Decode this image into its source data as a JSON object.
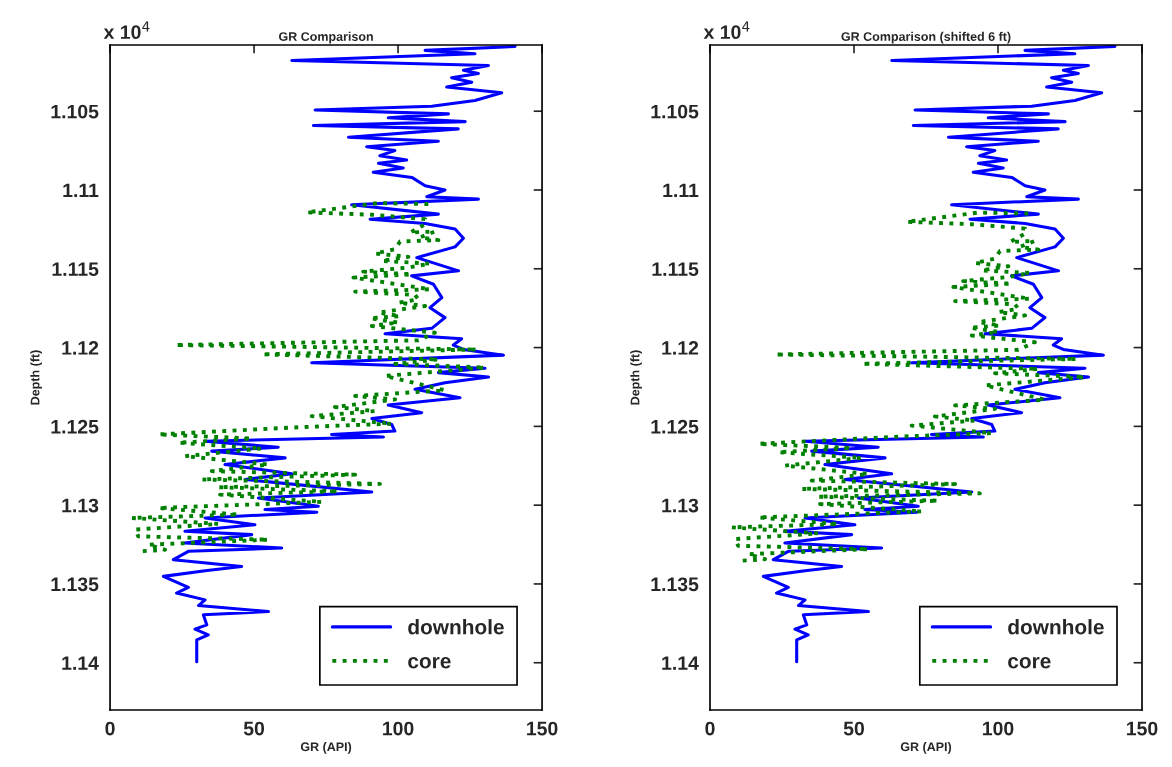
{
  "chart_data": [
    {
      "type": "line",
      "title": "GR Comparison",
      "xlabel": "GR (API)",
      "ylabel": "Depth (ft)",
      "annotations": [
        "x 10$^{4}$"
      ],
      "xlim": [
        0,
        150
      ],
      "xticks": [
        0,
        50,
        100,
        150
      ],
      "ylim": [
        1.143,
        1.1008
      ],
      "yticks": [
        1.105,
        1.11,
        1.115,
        1.12,
        1.125,
        1.13,
        1.135,
        1.14
      ],
      "legend": "bottom right",
      "series": [
        {
          "name": "downhole",
          "color": "#0000ff",
          "line_style": "solid",
          "x": [
            140.6,
            109.4,
            126.7,
            63.1,
            131.4,
            122.7,
            127.9,
            118.6,
            125.6,
            116.9,
            136,
            126.7,
            111.7,
            71.2,
            117.5,
            96.6,
            123.3,
            70.6,
            120.9,
            82.8,
            114,
            89.1,
            98.9,
            93.7,
            103,
            93.2,
            101.8,
            91.4,
            104.8,
            109.4,
            116.3,
            110,
            127.9,
            83.9,
            114,
            90.3,
            109.4,
            119.8,
            122.7,
            119.8,
            106.5,
            121,
            104.7,
            112.3,
            115.2,
            111.1,
            116.3,
            111.7,
            95.5,
            122.1,
            119.2,
            122.7,
            136.6,
            70,
            130.2,
            114,
            131.4,
            116.3,
            105.9,
            121.5,
            96.6,
            108.2,
            90.9,
            97.8,
            98.9,
            76.9,
            94.9,
            33,
            58.4,
            35.3,
            60.8,
            39.9,
            63.1,
            46.9,
            90.9,
            51.5,
            72.3,
            53.8,
            71.8,
            33,
            50.3,
            26,
            49.2,
            26,
            59.6,
            27.2,
            22,
            45.7,
            33,
            18.5,
            27.2,
            23.1,
            33,
            30.7,
            55,
            32.4,
            33.6,
            29.5,
            34.1,
            30.1,
            30.1
          ],
          "values": [
            1.10089,
            1.10114,
            1.10135,
            1.10178,
            1.1021,
            1.1024,
            1.1026,
            1.10288,
            1.10316,
            1.10347,
            1.10383,
            1.10432,
            1.10468,
            1.10492,
            1.10517,
            1.10542,
            1.10566,
            1.10591,
            1.10612,
            1.10665,
            1.10691,
            1.10725,
            1.1075,
            1.10782,
            1.1081,
            1.10831,
            1.1086,
            1.10888,
            1.1092,
            1.10973,
            1.11,
            1.11043,
            1.11058,
            1.11094,
            1.11153,
            1.11185,
            1.11212,
            1.11248,
            1.11306,
            1.11361,
            1.11429,
            1.11513,
            1.11545,
            1.11598,
            1.11683,
            1.11747,
            1.1181,
            1.11878,
            1.11912,
            1.11944,
            1.11984,
            1.12012,
            1.12048,
            1.12096,
            1.12131,
            1.12159,
            1.12187,
            1.12223,
            1.12265,
            1.12318,
            1.12365,
            1.12413,
            1.1245,
            1.12488,
            1.1253,
            1.12551,
            1.12568,
            1.12594,
            1.12632,
            1.12657,
            1.127,
            1.12742,
            1.12801,
            1.12837,
            1.12916,
            1.12954,
            1.13007,
            1.13028,
            1.13045,
            1.13081,
            1.13124,
            1.13166,
            1.13187,
            1.1324,
            1.13272,
            1.13293,
            1.13346,
            1.13389,
            1.13416,
            1.13452,
            1.13522,
            1.13558,
            1.13601,
            1.13637,
            1.13675,
            1.13696,
            1.1376,
            1.13787,
            1.13823,
            1.13855,
            1.13993
          ]
        },
        {
          "name": "core",
          "color": "#008000",
          "line_style": "dotted",
          "x": [
            110.5,
            93.2,
            68.3,
            90.9,
            109.4,
            109.4,
            104.2,
            112.8,
            107.6,
            114,
            100.7,
            98.9,
            92,
            103.6,
            94.3,
            111.1,
            103.6,
            87.9,
            104.7,
            84.5,
            111.1,
            85.1,
            105.9,
            107.1,
            100.1,
            109.4,
            93.2,
            100.7,
            90.3,
            100.1,
            90.9,
            112.8,
            107.1,
            22.6,
            127.3,
            52.7,
            114,
            99,
            130.2,
            95.5,
            116.3,
            85.1,
            99,
            78.1,
            92,
            70,
            97.8,
            66,
            16.8,
            49.2,
            23.7,
            52.7,
            26,
            55,
            35.3,
            85.1,
            31.8,
            93.7,
            37.6,
            79.3,
            38.2,
            73.5,
            16.8,
            44.6,
            7.5,
            37.6,
            8.7,
            9.8,
            55,
            13.3,
            19.1,
            10.4
          ],
          "values": [
            1.11089,
            1.11083,
            1.11142,
            1.11157,
            1.11185,
            1.11217,
            1.1127,
            1.11263,
            1.11301,
            1.11318,
            1.11327,
            1.11376,
            1.11403,
            1.11424,
            1.1145,
            1.11467,
            1.11492,
            1.11518,
            1.11535,
            1.11556,
            1.1163,
            1.11645,
            1.11666,
            1.11694,
            1.11715,
            1.11736,
            1.11778,
            1.118,
            1.11814,
            1.11841,
            1.11863,
            1.11906,
            1.11954,
            1.11984,
            1.12012,
            1.12043,
            1.12075,
            1.12103,
            1.12127,
            1.1218,
            1.12271,
            1.12307,
            1.12329,
            1.12377,
            1.12403,
            1.12435,
            1.12483,
            1.12505,
            1.12551,
            1.12577,
            1.12604,
            1.1264,
            1.12689,
            1.12742,
            1.12784,
            1.12806,
            1.12837,
            1.12865,
            1.12886,
            1.12912,
            1.12933,
            1.12979,
            1.13018,
            1.1306,
            1.13081,
            1.13119,
            1.13155,
            1.13198,
            1.13219,
            1.13251,
            1.13283,
            1.13293
          ]
        }
      ]
    },
    {
      "type": "line",
      "title": "GR Comparison (shifted 6 ft)",
      "xlabel": "GR (API)",
      "ylabel": "Depth (ft)",
      "annotations": [
        "x 10$^{4}$"
      ],
      "xlim": [
        0,
        150
      ],
      "xticks": [
        0,
        50,
        100,
        150
      ],
      "ylim": [
        1.143,
        1.1008
      ],
      "yticks": [
        1.105,
        1.11,
        1.115,
        1.12,
        1.125,
        1.13,
        1.135,
        1.14
      ],
      "legend": "bottom right",
      "series": [
        {
          "name": "downhole",
          "color": "#0000ff",
          "line_style": "solid",
          "x": [
            140.6,
            109.4,
            126.7,
            63.1,
            131.4,
            122.7,
            127.9,
            118.6,
            125.6,
            116.9,
            136,
            126.7,
            111.7,
            71.2,
            117.5,
            96.6,
            123.3,
            70.6,
            120.9,
            82.8,
            114,
            89.1,
            98.9,
            93.7,
            103,
            93.2,
            101.8,
            91.4,
            104.8,
            109.4,
            116.3,
            110,
            127.9,
            83.9,
            114,
            90.3,
            109.4,
            119.8,
            122.7,
            119.8,
            106.5,
            121,
            104.7,
            112.3,
            115.2,
            111.1,
            116.3,
            111.7,
            95.5,
            122.1,
            119.2,
            122.7,
            136.6,
            70,
            130.2,
            114,
            131.4,
            116.3,
            105.9,
            121.5,
            96.6,
            108.2,
            90.9,
            97.8,
            98.9,
            76.9,
            94.9,
            33,
            58.4,
            35.3,
            60.8,
            39.9,
            63.1,
            46.9,
            90.9,
            51.5,
            72.3,
            53.8,
            71.8,
            33,
            50.3,
            26,
            49.2,
            26,
            59.6,
            27.2,
            22,
            45.7,
            33,
            18.5,
            27.2,
            23.1,
            33,
            30.7,
            55,
            32.4,
            33.6,
            29.5,
            34.1,
            30.1,
            30.1
          ],
          "values": [
            1.10089,
            1.10114,
            1.10135,
            1.10178,
            1.1021,
            1.1024,
            1.1026,
            1.10288,
            1.10316,
            1.10347,
            1.10383,
            1.10432,
            1.10468,
            1.10492,
            1.10517,
            1.10542,
            1.10566,
            1.10591,
            1.10612,
            1.10665,
            1.10691,
            1.10725,
            1.1075,
            1.10782,
            1.1081,
            1.10831,
            1.1086,
            1.10888,
            1.1092,
            1.10973,
            1.11,
            1.11043,
            1.11058,
            1.11094,
            1.11153,
            1.11185,
            1.11212,
            1.11248,
            1.11306,
            1.11361,
            1.11429,
            1.11513,
            1.11545,
            1.11598,
            1.11683,
            1.11747,
            1.1181,
            1.11878,
            1.11912,
            1.11944,
            1.11984,
            1.12012,
            1.12048,
            1.12096,
            1.12131,
            1.12159,
            1.12187,
            1.12223,
            1.12265,
            1.12318,
            1.12365,
            1.12413,
            1.1245,
            1.12488,
            1.1253,
            1.12551,
            1.12568,
            1.12594,
            1.12632,
            1.12657,
            1.127,
            1.12742,
            1.12801,
            1.12837,
            1.12916,
            1.12954,
            1.13007,
            1.13028,
            1.13045,
            1.13081,
            1.13124,
            1.13166,
            1.13187,
            1.1324,
            1.13272,
            1.13293,
            1.13346,
            1.13389,
            1.13416,
            1.13452,
            1.13522,
            1.13558,
            1.13601,
            1.13637,
            1.13675,
            1.13696,
            1.1376,
            1.13787,
            1.13823,
            1.13855,
            1.13993
          ]
        },
        {
          "name": "core",
          "color": "#008000",
          "line_style": "dotted",
          "x": [
            110.5,
            93.2,
            68.3,
            90.9,
            109.4,
            109.4,
            104.2,
            112.8,
            107.6,
            114,
            100.7,
            98.9,
            92,
            103.6,
            94.3,
            111.1,
            103.6,
            87.9,
            104.7,
            84.5,
            111.1,
            85.1,
            105.9,
            107.1,
            100.1,
            109.4,
            93.2,
            100.7,
            90.3,
            100.1,
            90.9,
            112.8,
            107.1,
            22.6,
            127.3,
            52.7,
            114,
            99,
            130.2,
            95.5,
            116.3,
            85.1,
            99,
            78.1,
            92,
            70,
            97.8,
            66,
            16.8,
            49.2,
            23.7,
            52.7,
            26,
            55,
            35.3,
            85.1,
            31.8,
            93.7,
            37.6,
            79.3,
            38.2,
            73.5,
            16.8,
            44.6,
            7.5,
            37.6,
            8.7,
            9.8,
            55,
            13.3,
            19.1,
            10.4
          ],
          "values": [
            1.11149,
            1.11143,
            1.11202,
            1.11217,
            1.11245,
            1.11277,
            1.1133,
            1.11323,
            1.11361,
            1.11378,
            1.11387,
            1.11436,
            1.11463,
            1.11484,
            1.1151,
            1.11527,
            1.11552,
            1.11578,
            1.11595,
            1.11616,
            1.1169,
            1.11705,
            1.11726,
            1.11754,
            1.11775,
            1.11796,
            1.11838,
            1.1186,
            1.11874,
            1.11901,
            1.11923,
            1.11966,
            1.12014,
            1.12044,
            1.12072,
            1.12103,
            1.12135,
            1.12163,
            1.12187,
            1.1224,
            1.12331,
            1.12367,
            1.12389,
            1.12437,
            1.12463,
            1.12495,
            1.12543,
            1.12565,
            1.12611,
            1.12637,
            1.12664,
            1.127,
            1.12749,
            1.12802,
            1.12844,
            1.12866,
            1.12897,
            1.12925,
            1.12946,
            1.12972,
            1.12993,
            1.13039,
            1.13078,
            1.1312,
            1.13141,
            1.13179,
            1.13215,
            1.13258,
            1.13279,
            1.13311,
            1.13343,
            1.13353
          ]
        }
      ]
    }
  ]
}
